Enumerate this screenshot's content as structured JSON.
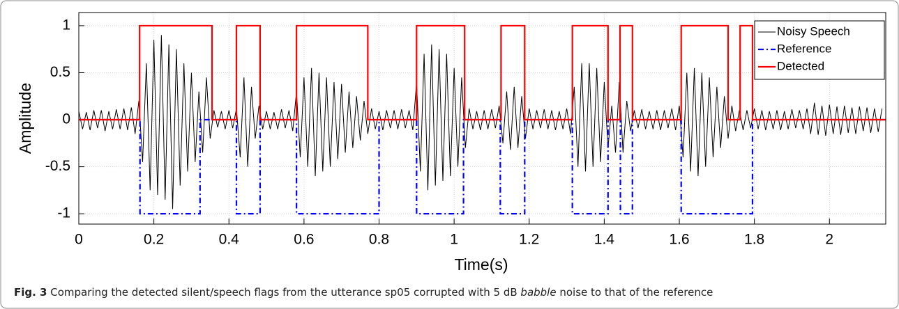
{
  "chart_data": {
    "type": "line",
    "x_label": "Time(s)",
    "y_label": "Amplitude",
    "xlim": [
      0,
      2.15
    ],
    "ylim": [
      -1.11,
      1.14
    ],
    "xticks": [
      0,
      0.2,
      0.4,
      0.6,
      0.8,
      1,
      1.2,
      1.4,
      1.6,
      1.8,
      2
    ],
    "yticks": [
      -1,
      -0.5,
      0,
      0.5,
      1
    ],
    "grid": true,
    "legend_position": "northeast",
    "series": [
      {
        "name": "Noisy Speech",
        "color": "#000000",
        "style": "solid",
        "x": [
          0,
          0.01,
          0.02,
          0.03,
          0.04,
          0.05,
          0.06,
          0.07,
          0.08,
          0.09,
          0.1,
          0.11,
          0.12,
          0.13,
          0.14,
          0.15,
          0.16,
          0.17,
          0.18,
          0.19,
          0.2,
          0.21,
          0.22,
          0.23,
          0.24,
          0.25,
          0.26,
          0.27,
          0.28,
          0.29,
          0.3,
          0.31,
          0.32,
          0.33,
          0.34,
          0.35,
          0.36,
          0.37,
          0.38,
          0.39,
          0.4,
          0.41,
          0.42,
          0.43,
          0.44,
          0.45,
          0.46,
          0.47,
          0.48,
          0.49,
          0.5,
          0.51,
          0.52,
          0.53,
          0.54,
          0.55,
          0.56,
          0.57,
          0.58,
          0.59,
          0.6,
          0.61,
          0.62,
          0.63,
          0.64,
          0.65,
          0.66,
          0.67,
          0.68,
          0.69,
          0.7,
          0.71,
          0.72,
          0.73,
          0.74,
          0.75,
          0.76,
          0.77,
          0.78,
          0.79,
          0.8,
          0.81,
          0.82,
          0.83,
          0.84,
          0.85,
          0.86,
          0.87,
          0.88,
          0.89,
          0.9,
          0.91,
          0.92,
          0.93,
          0.94,
          0.95,
          0.96,
          0.97,
          0.98,
          0.99,
          1,
          1.01,
          1.02,
          1.03,
          1.04,
          1.05,
          1.06,
          1.07,
          1.08,
          1.09,
          1.1,
          1.11,
          1.12,
          1.13,
          1.14,
          1.15,
          1.16,
          1.17,
          1.18,
          1.19,
          1.2,
          1.21,
          1.22,
          1.23,
          1.24,
          1.25,
          1.26,
          1.27,
          1.28,
          1.29,
          1.3,
          1.31,
          1.32,
          1.33,
          1.34,
          1.35,
          1.36,
          1.37,
          1.38,
          1.39,
          1.4,
          1.41,
          1.42,
          1.43,
          1.44,
          1.45,
          1.46,
          1.47,
          1.48,
          1.49,
          1.5,
          1.51,
          1.52,
          1.53,
          1.54,
          1.55,
          1.56,
          1.57,
          1.58,
          1.59,
          1.6,
          1.61,
          1.62,
          1.63,
          1.64,
          1.65,
          1.66,
          1.67,
          1.68,
          1.69,
          1.7,
          1.71,
          1.72,
          1.73,
          1.74,
          1.75,
          1.76,
          1.77,
          1.78,
          1.79,
          1.8,
          1.81,
          1.82,
          1.83,
          1.84,
          1.85,
          1.86,
          1.87,
          1.88,
          1.89,
          1.9,
          1.91,
          1.92,
          1.93,
          1.94,
          1.95,
          1.96,
          1.97,
          1.98,
          1.99,
          2,
          2.01,
          2.02,
          2.03,
          2.04,
          2.05,
          2.06,
          2.07,
          2.08,
          2.09,
          2.1,
          2.11,
          2.12,
          2.13,
          2.14
        ],
        "values": [
          0.09,
          -0.1,
          0.08,
          -0.11,
          0.1,
          -0.09,
          0.1,
          -0.12,
          0.09,
          -0.1,
          0.11,
          -0.1,
          0.12,
          -0.11,
          0.13,
          -0.15,
          0.2,
          -0.45,
          0.6,
          -0.75,
          0.85,
          -0.8,
          0.9,
          -0.85,
          0.8,
          -0.95,
          0.75,
          -0.7,
          0.6,
          -0.55,
          0.5,
          -0.45,
          0.3,
          -0.35,
          0.45,
          -0.2,
          0.1,
          -0.08,
          0.09,
          -0.1,
          0.1,
          -0.09,
          0.12,
          -0.4,
          0.45,
          -0.5,
          0.35,
          -0.2,
          0.15,
          -0.1,
          0.09,
          -0.1,
          0.08,
          -0.1,
          0.11,
          -0.09,
          0.1,
          -0.12,
          0.3,
          -0.4,
          0.45,
          -0.5,
          0.55,
          -0.6,
          0.5,
          -0.55,
          0.45,
          -0.5,
          0.4,
          -0.42,
          0.38,
          -0.35,
          0.3,
          -0.3,
          0.25,
          -0.22,
          0.2,
          -0.15,
          0.12,
          -0.1,
          0.09,
          -0.11,
          0.1,
          -0.09,
          0.1,
          -0.1,
          0.11,
          -0.09,
          0.1,
          -0.11,
          0.4,
          -0.55,
          0.7,
          -0.75,
          0.8,
          -0.7,
          0.75,
          -0.65,
          0.7,
          -0.6,
          0.55,
          -0.5,
          0.45,
          -0.3,
          0.12,
          -0.1,
          0.09,
          -0.11,
          0.1,
          -0.1,
          0.11,
          -0.09,
          0.15,
          -0.25,
          0.3,
          -0.32,
          0.35,
          -0.3,
          0.25,
          -0.2,
          0.12,
          -0.1,
          0.1,
          -0.09,
          0.11,
          -0.1,
          0.1,
          -0.11,
          0.09,
          -0.1,
          0.12,
          -0.15,
          0.35,
          -0.5,
          0.6,
          -0.55,
          0.6,
          -0.5,
          0.55,
          -0.45,
          0.4,
          -0.3,
          0.15,
          -0.35,
          0.4,
          -0.35,
          0.2,
          -0.12,
          0.1,
          -0.09,
          0.11,
          -0.1,
          0.09,
          -0.1,
          0.1,
          -0.11,
          0.1,
          -0.09,
          0.12,
          -0.11,
          0.15,
          -0.4,
          0.5,
          -0.55,
          0.55,
          -0.6,
          0.5,
          -0.5,
          0.45,
          -0.4,
          0.35,
          -0.3,
          0.25,
          -0.2,
          0.15,
          -0.12,
          0.1,
          -0.11,
          0.1,
          -0.09,
          0.12,
          -0.1,
          0.1,
          -0.11,
          0.09,
          -0.1,
          0.1,
          -0.11,
          0.09,
          -0.1,
          0.11,
          -0.09,
          0.1,
          -0.1,
          0.12,
          -0.15,
          0.18,
          -0.16,
          0.15,
          -0.17,
          0.16,
          -0.15,
          0.14,
          -0.16,
          0.15,
          -0.14,
          0.13,
          -0.15,
          0.14,
          -0.12,
          0.13,
          -0.14,
          0.12,
          -0.13,
          0.12
        ]
      },
      {
        "name": "Reference",
        "color": "#0000ff",
        "style": "dashdot",
        "x": [
          0,
          0.163,
          0.163,
          0.323,
          0.323,
          0.42,
          0.42,
          0.483,
          0.483,
          0.58,
          0.58,
          0.8,
          0.8,
          0.9,
          0.9,
          1.025,
          1.025,
          1.123,
          1.123,
          1.188,
          1.188,
          1.315,
          1.315,
          1.41,
          1.41,
          1.443,
          1.443,
          1.475,
          1.475,
          1.605,
          1.605,
          1.795,
          1.795,
          2.15
        ],
        "values": [
          0,
          0,
          -1,
          -1,
          0,
          0,
          -1,
          -1,
          0,
          0,
          -1,
          -1,
          0,
          0,
          -1,
          -1,
          0,
          0,
          -1,
          -1,
          0,
          0,
          -1,
          -1,
          0,
          0,
          -1,
          -1,
          0,
          0,
          -1,
          -1,
          0,
          0
        ]
      },
      {
        "name": "Detected",
        "color": "#ff0000",
        "style": "solid",
        "x": [
          0,
          0.162,
          0.162,
          0.355,
          0.355,
          0.42,
          0.42,
          0.483,
          0.483,
          0.58,
          0.58,
          0.77,
          0.77,
          0.9,
          0.9,
          1.028,
          1.028,
          1.125,
          1.125,
          1.188,
          1.188,
          1.315,
          1.315,
          1.41,
          1.41,
          1.442,
          1.442,
          1.475,
          1.475,
          1.605,
          1.605,
          1.73,
          1.73,
          1.762,
          1.762,
          1.795,
          1.795,
          2.15
        ],
        "values": [
          0,
          0,
          1,
          1,
          0,
          0,
          1,
          1,
          0,
          0,
          1,
          1,
          0,
          0,
          1,
          1,
          0,
          0,
          1,
          1,
          0,
          0,
          1,
          1,
          0,
          0,
          1,
          1,
          0,
          0,
          1,
          1,
          0,
          0,
          1,
          1,
          0,
          0
        ]
      }
    ],
    "caption": {
      "label": "Fig. 3",
      "parts": [
        "Comparing the detected silent/speech flags from the utterance sp05 corrupted with 5 dB ",
        "babble",
        " noise to that of the reference"
      ]
    }
  }
}
